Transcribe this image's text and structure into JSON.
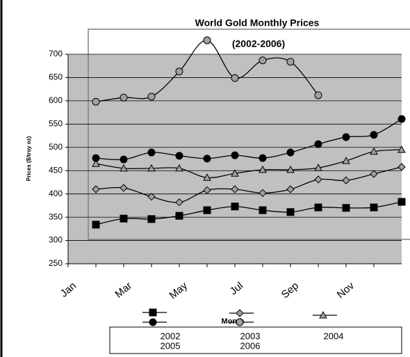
{
  "chart_data": {
    "type": "line",
    "title": "World Gold Monthly Prices",
    "subtitle": "(2002-2006)",
    "y_label": "Prices ($/troy oz)",
    "x_label": "Month",
    "categories": [
      "Jan",
      null,
      "Mar",
      null,
      "May",
      null,
      "Jul",
      null,
      "Sep",
      null,
      "Nov",
      null
    ],
    "ylim": [
      250,
      700
    ],
    "yticks": [
      250,
      300,
      350,
      400,
      450,
      500,
      550,
      600,
      650,
      700
    ],
    "grid": true,
    "series": [
      {
        "name": "2002",
        "color": "#000000",
        "marker": "square",
        "values": [
          334,
          347,
          346,
          353,
          365,
          373,
          365,
          361,
          371,
          370,
          371,
          383
        ]
      },
      {
        "name": "2003",
        "color": "#a0a0a0",
        "marker": "diamond",
        "values": [
          410,
          413,
          394,
          382,
          408,
          410,
          402,
          410,
          431,
          429,
          443,
          458
        ]
      },
      {
        "name": "2004",
        "color": "#a0a0a0",
        "marker": "triangle",
        "values": [
          465,
          455,
          455,
          455,
          435,
          444,
          452,
          452,
          456,
          471,
          491,
          495
        ]
      },
      {
        "name": "2005",
        "color": "#000000",
        "marker": "circle",
        "values": [
          477,
          474,
          489,
          482,
          476,
          483,
          477,
          489,
          507,
          522,
          527,
          561
        ]
      },
      {
        "name": "2006",
        "color": "#a0a0a0",
        "marker": "circle",
        "values": [
          598,
          607,
          609,
          663,
          730,
          649,
          687,
          684,
          612,
          null,
          null,
          null
        ]
      }
    ]
  }
}
